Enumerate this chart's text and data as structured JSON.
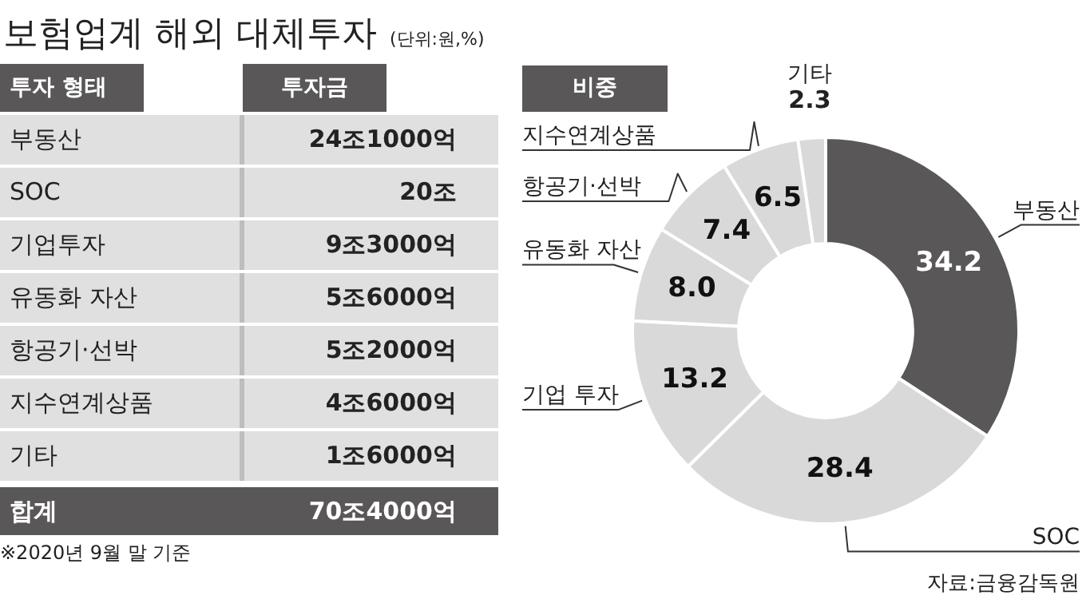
{
  "chart_data": [
    {
      "type": "other",
      "title": "보험업계 해외 대체투자",
      "subtitle": "(단위:원,%)",
      "categories": [
        "부동산",
        "SOC",
        "기업투자",
        "유동화 자산",
        "항공기·선박",
        "지수연계상품",
        "기타",
        "합계"
      ],
      "value_labels": [
        "24조1000억",
        "20조",
        "9조3000억",
        "5조6000억",
        "5조2000억",
        "4조6000억",
        "1조6000억",
        "70조4000억"
      ],
      "annotations": [
        "투자 형태",
        "투자금",
        "※2020년 9월 말 기준"
      ]
    },
    {
      "type": "donut",
      "title": "비중",
      "categories": [
        "부동산",
        "SOC",
        "기업 투자",
        "유동화 자산",
        "항공기·선박",
        "지수연계상품",
        "기타"
      ],
      "values": [
        34.2,
        28.4,
        13.2,
        8.0,
        7.4,
        6.5,
        2.3
      ],
      "colors": [
        "#595757",
        "#d9d9d9",
        "#d9d9d9",
        "#d9d9d9",
        "#d9d9d9",
        "#d9d9d9",
        "#d9d9d9"
      ],
      "value_labels": [
        "34.2",
        "28.4",
        "13.2",
        "8.0",
        "7.4",
        "6.5",
        "2.3"
      ],
      "annotations": [
        "자료:금융감독원"
      ]
    }
  ]
}
